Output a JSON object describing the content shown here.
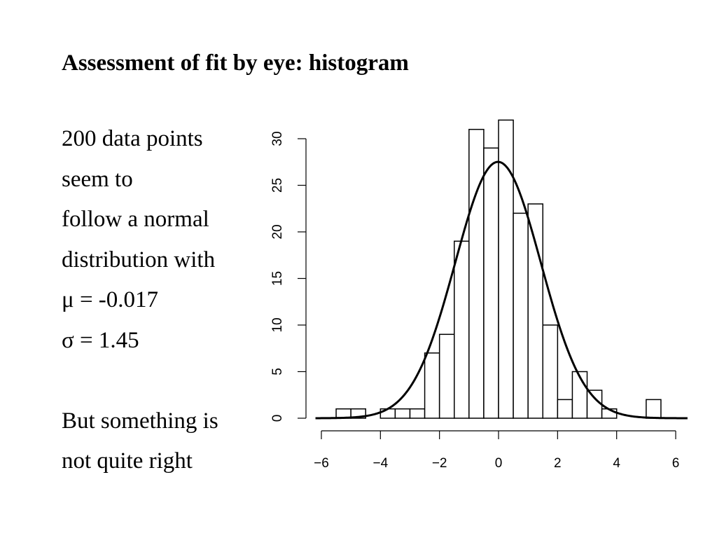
{
  "slide": {
    "title": "Assessment of fit by eye: histogram",
    "text_lines": [
      "200 data points",
      "seem to",
      "follow a normal",
      "distribution with",
      "μ = -0.017",
      "σ = 1.45",
      "",
      "But something is",
      "not quite right"
    ]
  },
  "chart_data": {
    "type": "bar",
    "subtype": "histogram",
    "bin_width": 0.5,
    "bin_edges": [
      -5.5,
      -5.0,
      -4.5,
      -4.0,
      -3.5,
      -3.0,
      -2.5,
      -2.0,
      -1.5,
      -1.0,
      -0.5,
      0.0,
      0.5,
      1.0,
      1.5,
      2.0,
      2.5,
      3.0,
      3.5,
      4.0,
      4.5,
      5.0,
      5.5
    ],
    "counts": [
      1,
      1,
      0,
      1,
      1,
      1,
      7,
      9,
      19,
      31,
      29,
      32,
      22,
      23,
      10,
      2,
      5,
      3,
      1,
      0,
      0,
      2
    ],
    "n": 200,
    "fitted_curve": {
      "distribution": "normal",
      "mean": -0.017,
      "sd": 1.45
    },
    "x_ticks": [
      -6,
      -4,
      -2,
      0,
      2,
      4,
      6
    ],
    "x_tick_labels": [
      "−6",
      "−4",
      "−2",
      "0",
      "2",
      "4",
      "6"
    ],
    "y_ticks": [
      0,
      5,
      10,
      15,
      20,
      25,
      30
    ],
    "y_tick_labels": [
      "0",
      "5",
      "10",
      "15",
      "20",
      "25",
      "30"
    ],
    "xlim": [
      -6.2,
      6.4
    ],
    "ylim": [
      0,
      32
    ],
    "title": "",
    "xlabel": "",
    "ylabel": "",
    "grid": false,
    "colors": {
      "bar_fill": "#ffffff",
      "bar_stroke": "#000000",
      "curve": "#000000"
    }
  }
}
